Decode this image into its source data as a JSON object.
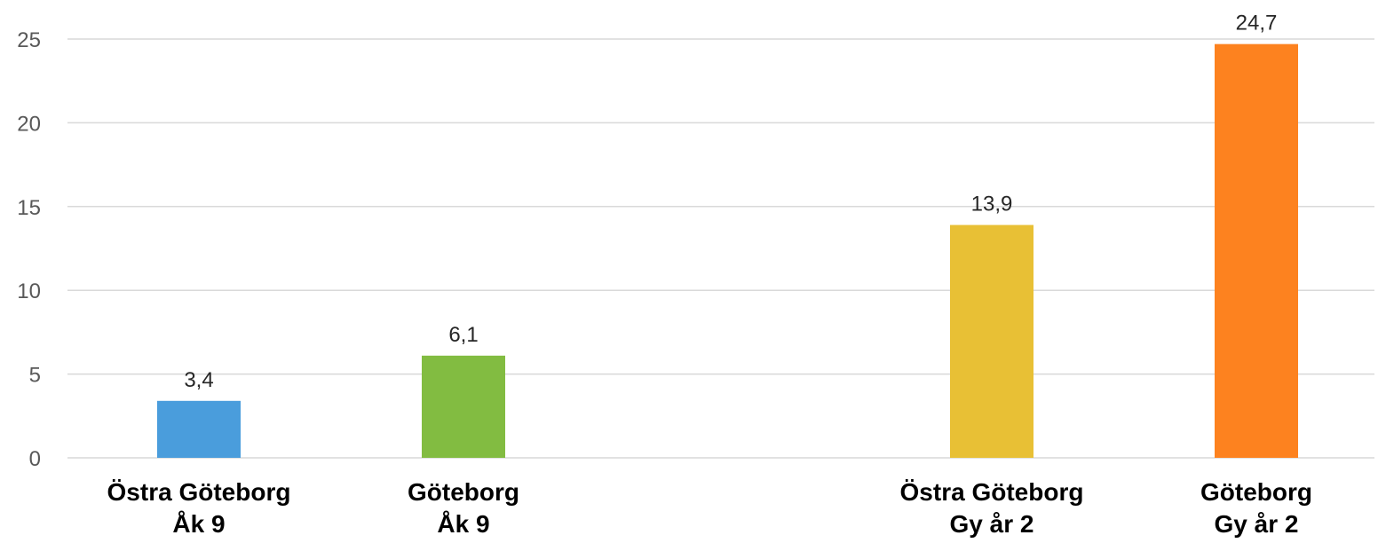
{
  "chart_data": {
    "type": "bar",
    "title": "",
    "xlabel": "",
    "ylabel": "",
    "ylim": [
      0,
      25
    ],
    "yticks": [
      0,
      5,
      10,
      15,
      20,
      25
    ],
    "grid": true,
    "legend": "none",
    "categories": [
      [
        "Östra Göteborg",
        "Åk 9"
      ],
      [
        "Göteborg",
        "Åk 9"
      ],
      [
        "Östra Göteborg",
        "Gy år 2"
      ],
      [
        "Göteborg",
        "Gy år 2"
      ]
    ],
    "values": [
      3.4,
      6.1,
      13.9,
      24.7
    ],
    "value_labels": [
      "3,4",
      "6,1",
      "13,9",
      "24,7"
    ],
    "colors": [
      "#4a9ddc",
      "#82bc41",
      "#e8c035",
      "#fd821f"
    ]
  }
}
